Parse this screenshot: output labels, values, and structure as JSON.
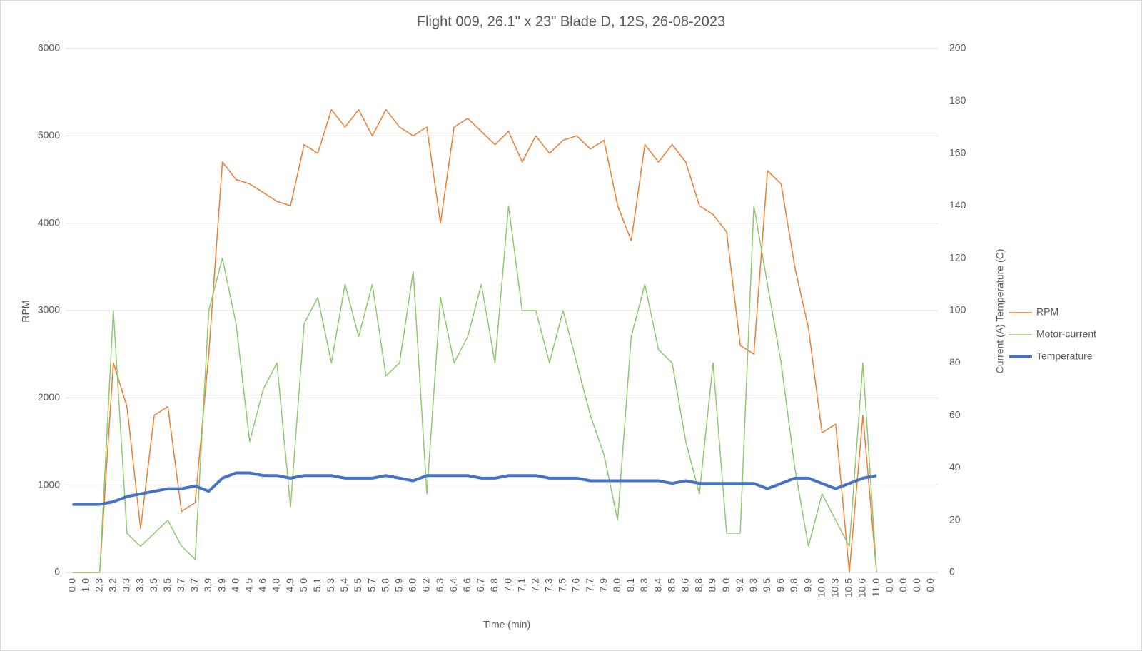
{
  "chart_data": {
    "type": "line",
    "title": "Flight 009, 26.1\" x 23\" Blade D, 12S, 26-08-2023",
    "x_label": "Time (min)",
    "y_label": "RPM",
    "y2_label": "Current (A) Temperature (C)",
    "categories": [
      "0,0",
      "1,0",
      "2,3",
      "3,2",
      "3,3",
      "3,3",
      "3,5",
      "3,5",
      "3,7",
      "3,7",
      "3,9",
      "3,9",
      "4,0",
      "4,5",
      "4,6",
      "4,8",
      "4,9",
      "5,0",
      "5,1",
      "5,3",
      "5,4",
      "5,5",
      "5,7",
      "5,8",
      "5,9",
      "6,0",
      "6,2",
      "6,3",
      "6,4",
      "6,6",
      "6,7",
      "6,8",
      "7,0",
      "7,1",
      "7,2",
      "7,3",
      "7,5",
      "7,6",
      "7,7",
      "7,9",
      "8,0",
      "8,1",
      "8,3",
      "8,4",
      "8,5",
      "8,6",
      "8,8",
      "8,9",
      "9,0",
      "9,2",
      "9,3",
      "9,5",
      "9,6",
      "9,8",
      "9,9",
      "10,0",
      "10,3",
      "10,5",
      "10,6",
      "11,0",
      "0,0",
      "0,0",
      "0,0",
      "0,0"
    ],
    "series": [
      {
        "name": "RPM",
        "color": "#ed7d31",
        "width": 1.5,
        "values": [
          0,
          0,
          0,
          2400,
          1900,
          500,
          1800,
          1900,
          700,
          800,
          2500,
          4700,
          4500,
          4450,
          4350,
          4250,
          4200,
          4900,
          4800,
          5300,
          5100,
          5300,
          5000,
          5300,
          5100,
          5000,
          5100,
          4000,
          5100,
          5200,
          5050,
          4900,
          5050,
          4700,
          5000,
          4800,
          4950,
          5000,
          4850,
          4950,
          4200,
          3800,
          4900,
          4700,
          4900,
          4700,
          4200,
          4100,
          3900,
          2600,
          2500,
          4600,
          4450,
          3500,
          2800,
          1600,
          1700,
          0,
          1800,
          0,
          null,
          null,
          null,
          null
        ]
      },
      {
        "name": "Motor-current",
        "color": "#8fc870",
        "width": 1.5,
        "axis": "y2",
        "values": [
          0,
          0,
          0,
          100,
          15,
          10,
          15,
          20,
          10,
          5,
          100,
          120,
          95,
          50,
          70,
          80,
          25,
          95,
          105,
          80,
          110,
          90,
          110,
          75,
          80,
          115,
          30,
          105,
          80,
          90,
          110,
          80,
          140,
          100,
          100,
          80,
          100,
          80,
          60,
          45,
          20,
          90,
          110,
          85,
          80,
          50,
          30,
          80,
          15,
          15,
          140,
          110,
          80,
          40,
          10,
          30,
          20,
          10,
          80,
          0,
          null,
          null,
          null,
          null
        ]
      },
      {
        "name": "Temperature",
        "color": "#4472c4",
        "width": 4,
        "axis": "y2",
        "values": [
          26,
          26,
          26,
          27,
          29,
          30,
          31,
          32,
          32,
          33,
          31,
          36,
          38,
          38,
          37,
          37,
          36,
          37,
          37,
          37,
          36,
          36,
          36,
          37,
          36,
          35,
          37,
          37,
          37,
          37,
          36,
          36,
          37,
          37,
          37,
          36,
          36,
          36,
          35,
          35,
          35,
          35,
          35,
          35,
          34,
          35,
          34,
          34,
          34,
          34,
          34,
          32,
          34,
          36,
          36,
          34,
          32,
          34,
          36,
          37,
          null,
          null,
          null,
          null
        ]
      }
    ],
    "ylim": [
      0,
      6000
    ],
    "yticks": [
      0,
      1000,
      2000,
      3000,
      4000,
      5000,
      6000
    ],
    "y2lim": [
      0,
      200
    ],
    "y2ticks": [
      0,
      20,
      40,
      60,
      80,
      100,
      120,
      140,
      160,
      180,
      200
    ],
    "grid": true,
    "legend": "right"
  }
}
